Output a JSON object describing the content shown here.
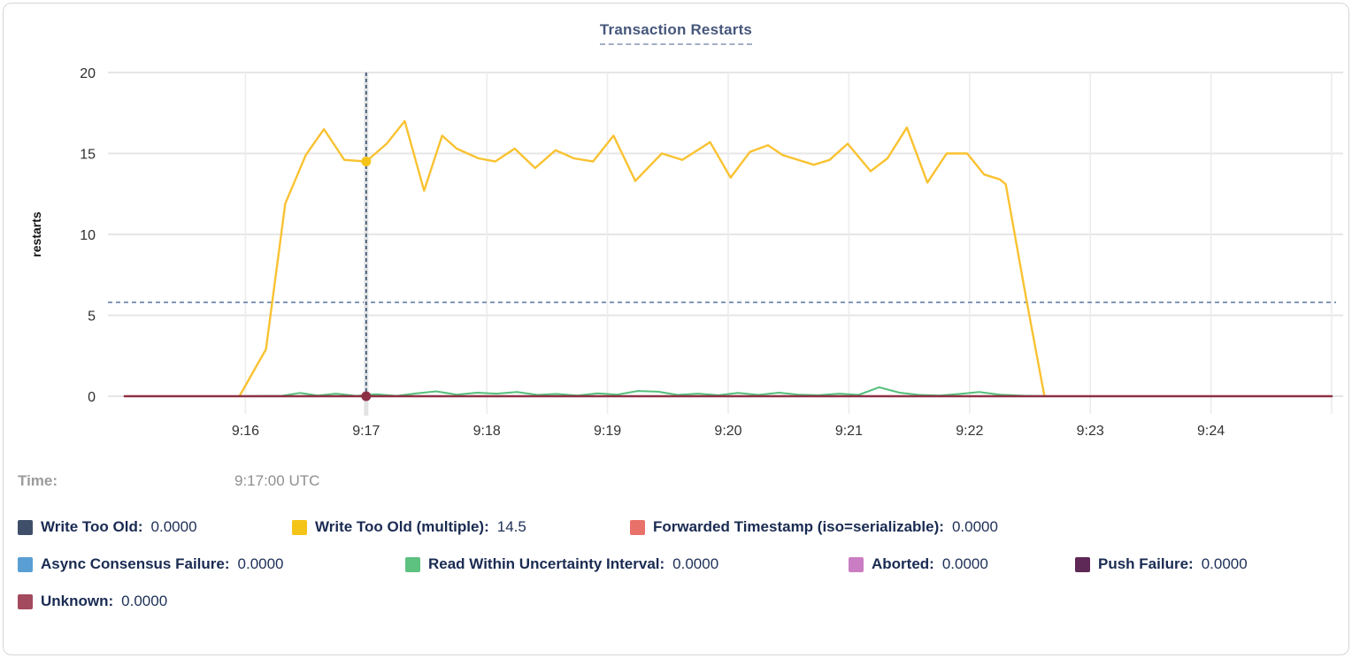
{
  "time_row": {
    "label": "Time:",
    "value": "9:17:00 UTC"
  },
  "legend": {
    "rows": [
      [
        {
          "label": "Write Too Old:",
          "value": "0.0000",
          "color": "#3f4f69"
        },
        {
          "label": "Write Too Old (multiple):",
          "value": "14.5",
          "color": "#f5c419"
        },
        {
          "label": "Forwarded Timestamp (iso=serializable):",
          "value": "0.0000",
          "color": "#e8716a"
        }
      ],
      [
        {
          "label": "Async Consensus Failure:",
          "value": "0.0000",
          "color": "#5a9fd4"
        },
        {
          "label": "Read Within Uncertainty Interval:",
          "value": "0.0000",
          "color": "#5dc180"
        },
        {
          "label": "Aborted:",
          "value": "0.0000",
          "color": "#cb7dc3"
        },
        {
          "label": "Push Failure:",
          "value": "0.0000",
          "color": "#5e2857"
        }
      ],
      [
        {
          "label": "Unknown:",
          "value": "0.0000",
          "color": "#a44a5e"
        }
      ]
    ]
  },
  "chart_data": {
    "type": "line",
    "title": "Transaction Restarts",
    "xlabel": "",
    "ylabel": "restarts",
    "ylim": [
      0,
      20
    ],
    "yticks": [
      0,
      5,
      10,
      15,
      20
    ],
    "xticks": [
      16,
      17,
      18,
      19,
      20,
      21,
      22,
      23,
      24,
      25
    ],
    "xtick_labels": [
      "9:16",
      "9:17",
      "9:18",
      "9:19",
      "9:20",
      "9:21",
      "9:22",
      "9:23",
      "9:24",
      ""
    ],
    "x_unit": "minutes after 9:00 UTC",
    "grid": true,
    "avg_dashed_line_y": 5.8,
    "hover": {
      "x": 17.0,
      "time": "9:17:00 UTC",
      "points": [
        {
          "series": "Write Too Old (multiple)",
          "y": 14.5,
          "color": "#f5c419"
        },
        {
          "series": "Unknown",
          "y": 0,
          "color": "#8e3044"
        }
      ]
    },
    "series": [
      {
        "name": "Write Too Old",
        "color": "#3f4f69",
        "width": 2,
        "points": [
          [
            15.0,
            0
          ],
          [
            25.0,
            0
          ]
        ]
      },
      {
        "name": "Write Too Old (multiple)",
        "color": "#f9c231",
        "width": 2.4,
        "points": [
          [
            15.95,
            0
          ],
          [
            16.17,
            2.9
          ],
          [
            16.33,
            11.9
          ],
          [
            16.5,
            14.9
          ],
          [
            16.65,
            16.5
          ],
          [
            16.82,
            14.6
          ],
          [
            17.0,
            14.5
          ],
          [
            17.17,
            15.6
          ],
          [
            17.32,
            17.0
          ],
          [
            17.48,
            12.7
          ],
          [
            17.63,
            16.1
          ],
          [
            17.75,
            15.3
          ],
          [
            17.93,
            14.7
          ],
          [
            18.07,
            14.5
          ],
          [
            18.23,
            15.3
          ],
          [
            18.4,
            14.1
          ],
          [
            18.57,
            15.2
          ],
          [
            18.72,
            14.7
          ],
          [
            18.88,
            14.5
          ],
          [
            19.05,
            16.1
          ],
          [
            19.23,
            13.3
          ],
          [
            19.45,
            15.0
          ],
          [
            19.62,
            14.6
          ],
          [
            19.85,
            15.7
          ],
          [
            20.02,
            13.5
          ],
          [
            20.18,
            15.1
          ],
          [
            20.33,
            15.5
          ],
          [
            20.45,
            14.9
          ],
          [
            20.71,
            14.3
          ],
          [
            20.84,
            14.6
          ],
          [
            20.99,
            15.6
          ],
          [
            21.18,
            13.9
          ],
          [
            21.32,
            14.7
          ],
          [
            21.48,
            16.6
          ],
          [
            21.65,
            13.2
          ],
          [
            21.81,
            15.0
          ],
          [
            21.98,
            15.0
          ],
          [
            22.12,
            13.7
          ],
          [
            22.25,
            13.4
          ],
          [
            22.3,
            13.1
          ],
          [
            22.47,
            6.0
          ],
          [
            22.62,
            0
          ]
        ]
      },
      {
        "name": "Forwarded Timestamp (iso=serializable)",
        "color": "#e8716a",
        "width": 2,
        "points": [
          [
            15.0,
            0
          ],
          [
            25.0,
            0
          ]
        ]
      },
      {
        "name": "Async Consensus Failure",
        "color": "#5a9fd4",
        "width": 2,
        "points": [
          [
            15.0,
            0
          ],
          [
            25.0,
            0
          ]
        ]
      },
      {
        "name": "Read Within Uncertainty Interval",
        "color": "#56bf7c",
        "width": 2,
        "points": [
          [
            15.95,
            0
          ],
          [
            16.3,
            0.02
          ],
          [
            16.45,
            0.2
          ],
          [
            16.6,
            0.04
          ],
          [
            16.75,
            0.16
          ],
          [
            16.92,
            0.02
          ],
          [
            17.08,
            0.12
          ],
          [
            17.25,
            0.02
          ],
          [
            17.42,
            0.18
          ],
          [
            17.58,
            0.3
          ],
          [
            17.75,
            0.1
          ],
          [
            17.92,
            0.22
          ],
          [
            18.08,
            0.16
          ],
          [
            18.25,
            0.26
          ],
          [
            18.42,
            0.08
          ],
          [
            18.58,
            0.14
          ],
          [
            18.75,
            0.04
          ],
          [
            18.92,
            0.18
          ],
          [
            19.08,
            0.1
          ],
          [
            19.25,
            0.32
          ],
          [
            19.42,
            0.28
          ],
          [
            19.58,
            0.08
          ],
          [
            19.75,
            0.16
          ],
          [
            19.92,
            0.06
          ],
          [
            20.08,
            0.2
          ],
          [
            20.25,
            0.08
          ],
          [
            20.42,
            0.22
          ],
          [
            20.58,
            0.1
          ],
          [
            20.75,
            0.06
          ],
          [
            20.92,
            0.16
          ],
          [
            21.08,
            0.08
          ],
          [
            21.25,
            0.55
          ],
          [
            21.42,
            0.22
          ],
          [
            21.58,
            0.08
          ],
          [
            21.75,
            0.04
          ],
          [
            21.92,
            0.14
          ],
          [
            22.08,
            0.26
          ],
          [
            22.25,
            0.1
          ],
          [
            22.45,
            0.03
          ],
          [
            22.62,
            0
          ]
        ]
      },
      {
        "name": "Aborted",
        "color": "#cb7dc3",
        "width": 2,
        "points": [
          [
            15.0,
            0
          ],
          [
            25.0,
            0
          ]
        ]
      },
      {
        "name": "Push Failure",
        "color": "#5e2857",
        "width": 2,
        "points": [
          [
            15.0,
            0
          ],
          [
            25.0,
            0
          ]
        ]
      },
      {
        "name": "Unknown",
        "color": "#8e3044",
        "width": 2.6,
        "points": [
          [
            15.0,
            0
          ],
          [
            25.0,
            0
          ]
        ]
      }
    ]
  }
}
